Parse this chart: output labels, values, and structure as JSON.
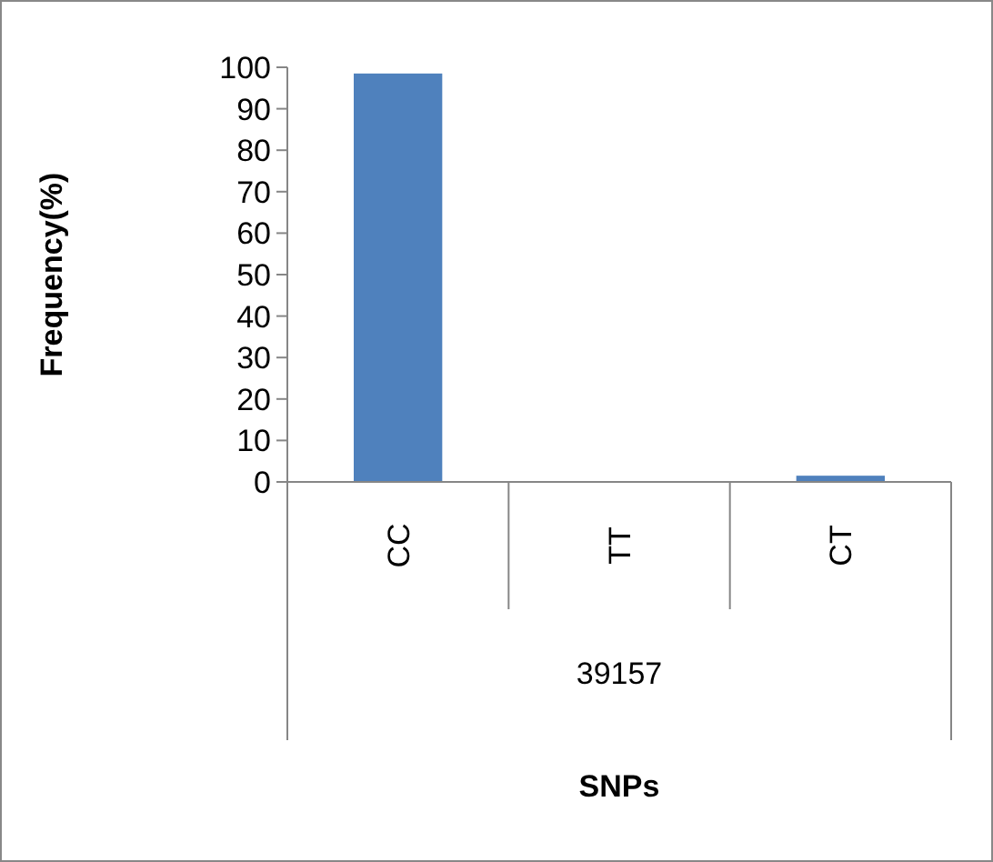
{
  "chart_data": {
    "type": "bar",
    "categories": [
      "CC",
      "TT",
      "CT"
    ],
    "values": [
      98.5,
      0,
      1.5
    ],
    "color": "#4f81bd",
    "ylim": [
      0,
      100
    ],
    "yticks": [
      0,
      10,
      20,
      30,
      40,
      50,
      60,
      70,
      80,
      90,
      100
    ],
    "ylabel": "Frequency(%)",
    "annotations": [
      "39157",
      "SNPs"
    ],
    "grid": false
  }
}
